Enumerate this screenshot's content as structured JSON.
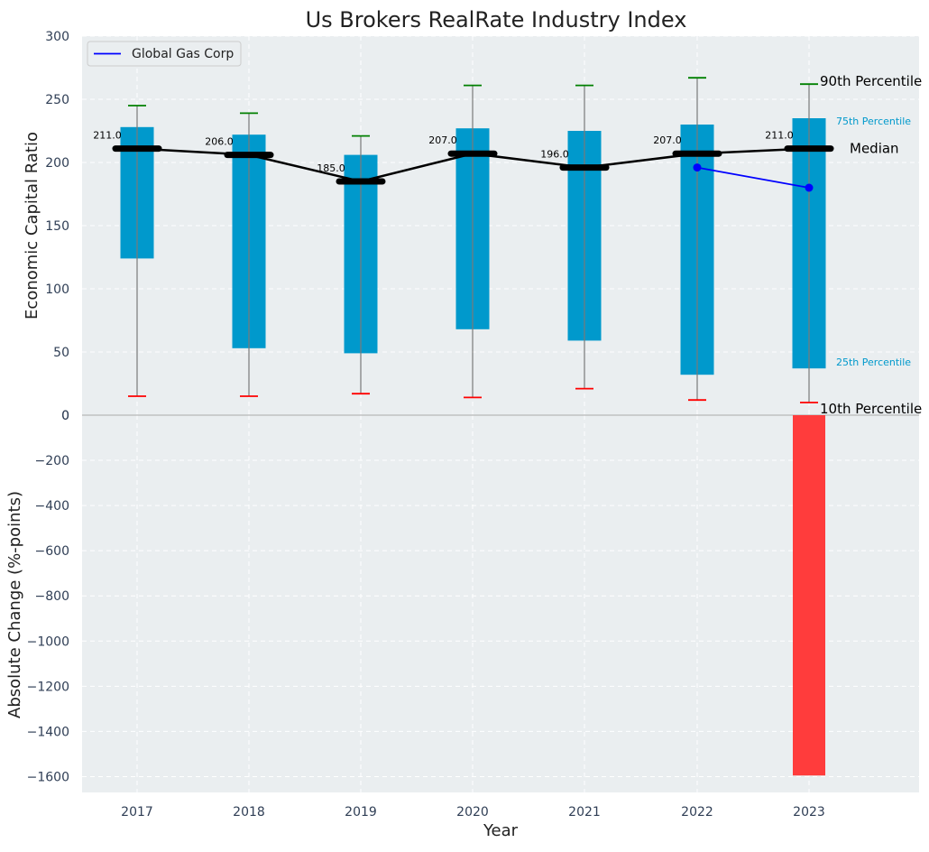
{
  "chart_data": {
    "type": "box-range-with-change-bars",
    "title": "Us Brokers RealRate Industry Index",
    "categories": [
      "2017",
      "2018",
      "2019",
      "2020",
      "2021",
      "2022",
      "2023"
    ],
    "xlabel": "Year",
    "top_panel": {
      "ylabel": "Economic Capital Ratio",
      "ylim": [
        0,
        300
      ],
      "yticks": [
        0,
        50,
        100,
        150,
        200,
        250,
        300
      ],
      "p10": [
        15,
        15,
        17,
        14,
        21,
        12,
        10
      ],
      "p25": [
        124,
        53,
        49,
        68,
        59,
        32,
        37
      ],
      "median": [
        211,
        206,
        185,
        207,
        196,
        207,
        211
      ],
      "median_labels": [
        "211.0",
        "206.0",
        "185.0",
        "207.0",
        "196.0",
        "207.0",
        "211.0"
      ],
      "p75": [
        228,
        222,
        206,
        227,
        225,
        230,
        235
      ],
      "p90": [
        245,
        239,
        221,
        261,
        261,
        267,
        262
      ],
      "company": {
        "name": "Global Gas Corp",
        "x": [
          "2022",
          "2023"
        ],
        "values": [
          196,
          180
        ]
      },
      "annotations": {
        "p90": "90th Percentile",
        "p75": "75th Percentile",
        "median": "Median",
        "p25": "25th Percentile",
        "p10": "10th Percentile"
      },
      "legend_placement": "top-left"
    },
    "bottom_panel": {
      "ylabel": "Absolute Change (%-points)",
      "ylim": [
        -1670,
        0
      ],
      "yticks": [
        0,
        -200,
        -400,
        -600,
        -800,
        -1000,
        -1200,
        -1400,
        -1600
      ],
      "change_values": [
        null,
        null,
        null,
        null,
        null,
        null,
        -1595
      ]
    },
    "grid": true,
    "colors": {
      "box": "#0099cc",
      "median": "#000000",
      "p90_cap": "#008000",
      "p10_cap": "#ff0000",
      "company": "#0000ff",
      "change_bar": "#ff3c3c",
      "panel_bg": "#eaeef0",
      "annot_75_25": "#0099cc"
    }
  }
}
